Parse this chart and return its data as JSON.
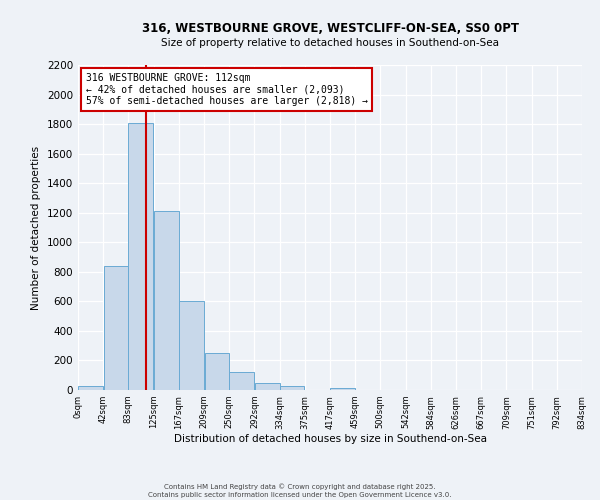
{
  "title1": "316, WESTBOURNE GROVE, WESTCLIFF-ON-SEA, SS0 0PT",
  "title2": "Size of property relative to detached houses in Southend-on-Sea",
  "xlabel": "Distribution of detached houses by size in Southend-on-Sea",
  "ylabel": "Number of detached properties",
  "bin_labels": [
    "0sqm",
    "42sqm",
    "83sqm",
    "125sqm",
    "167sqm",
    "209sqm",
    "250sqm",
    "292sqm",
    "334sqm",
    "375sqm",
    "417sqm",
    "459sqm",
    "500sqm",
    "542sqm",
    "584sqm",
    "626sqm",
    "667sqm",
    "709sqm",
    "751sqm",
    "792sqm",
    "834sqm"
  ],
  "bar_heights": [
    25,
    840,
    1810,
    1210,
    600,
    250,
    120,
    50,
    25,
    0,
    15,
    0,
    0,
    0,
    0,
    0,
    0,
    0,
    0,
    0
  ],
  "bar_color": "#c8d8ea",
  "bar_edge_color": "#6aaad4",
  "vline_x": 112,
  "vline_color": "#cc0000",
  "ylim": [
    0,
    2200
  ],
  "yticks": [
    0,
    200,
    400,
    600,
    800,
    1000,
    1200,
    1400,
    1600,
    1800,
    2000,
    2200
  ],
  "bin_edges": [
    0,
    42,
    83,
    125,
    167,
    209,
    250,
    292,
    334,
    375,
    417,
    459,
    500,
    542,
    584,
    626,
    667,
    709,
    751,
    792,
    834
  ],
  "annotation_title": "316 WESTBOURNE GROVE: 112sqm",
  "annotation_line1": "← 42% of detached houses are smaller (2,093)",
  "annotation_line2": "57% of semi-detached houses are larger (2,818) →",
  "annotation_box_color": "#ffffff",
  "annotation_box_edge": "#cc0000",
  "bg_color": "#eef2f7",
  "grid_color": "#ffffff",
  "footer1": "Contains HM Land Registry data © Crown copyright and database right 2025.",
  "footer2": "Contains public sector information licensed under the Open Government Licence v3.0."
}
